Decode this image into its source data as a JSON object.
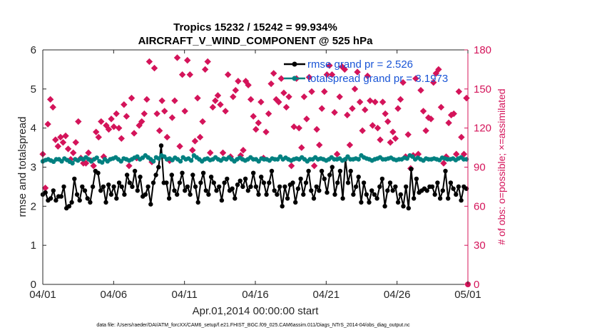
{
  "chart_data": {
    "type": "line",
    "title": "Tropics 15232 / 15242 = 99.934%",
    "subtitle": "AIRCRAFT_V_WIND_COMPONENT @ 525 hPa",
    "xlabel": "Apr.01,2014 00:00:00 start",
    "ylabel": "rmse and totalspread",
    "ylabel_right": "# of obs: o=possible; ×=assimilated",
    "footnote": "data file: /Users/raeder/DAI/ATM_forcXX/CAM6_setup/f.e21.FHIST_BGC.f09_025.CAM6assim.011/Diags_NTrS_2014-04/obs_diag_output.nc",
    "x_range": [
      0,
      30
    ],
    "ylim": [
      0,
      6
    ],
    "ylim_right": [
      0,
      180
    ],
    "x_ticks": [
      {
        "value": 0,
        "label": "04/01"
      },
      {
        "value": 5,
        "label": "04/06"
      },
      {
        "value": 10,
        "label": "04/11"
      },
      {
        "value": 15,
        "label": "04/16"
      },
      {
        "value": 20,
        "label": "04/21"
      },
      {
        "value": 25,
        "label": "04/26"
      },
      {
        "value": 30,
        "label": "05/01"
      }
    ],
    "y_ticks": [
      "0",
      "1",
      "2",
      "3",
      "4",
      "5",
      "6"
    ],
    "y_ticks_right": [
      "0",
      "30",
      "60",
      "90",
      "120",
      "150",
      "180"
    ],
    "legend_placement": "top-right",
    "grid": false,
    "colors": {
      "rmse": "#000000",
      "totalspread": "#008080",
      "obs": "#d4145a",
      "legend_text": "#1a55d6"
    },
    "series": [
      {
        "name": "rmse grand pr = 2.526",
        "axis": "left",
        "color": "#000000",
        "values": [
          2.3,
          2.35,
          2.15,
          2.2,
          2.4,
          2.15,
          2.25,
          2.25,
          2.5,
          1.95,
          2.0,
          2.1,
          2.7,
          2.3,
          2.15,
          2.5,
          2.4,
          2.2,
          2.1,
          2.5,
          2.9,
          2.85,
          2.4,
          2.5,
          2.1,
          2.55,
          2.3,
          2.5,
          2.2,
          2.6,
          2.5,
          2.3,
          2.8,
          2.6,
          2.5,
          2.9,
          2.4,
          2.75,
          2.25,
          2.3,
          2.5,
          2.05,
          2.6,
          2.8,
          3.0,
          3.55,
          2.6,
          2.6,
          2.2,
          2.8,
          2.4,
          2.3,
          2.6,
          2.85,
          2.4,
          2.5,
          2.3,
          2.8,
          2.5,
          2.1,
          2.6,
          2.85,
          2.4,
          2.3,
          2.75,
          2.6,
          2.4,
          2.5,
          2.15,
          2.6,
          2.7,
          2.4,
          2.45,
          2.2,
          2.55,
          2.65,
          2.5,
          2.7,
          2.4,
          2.5,
          2.85,
          2.5,
          2.3,
          2.75,
          2.6,
          2.3,
          2.6,
          2.9,
          2.4,
          2.3,
          2.5,
          2.0,
          2.5,
          2.2,
          2.55,
          2.6,
          2.1,
          2.45,
          2.7,
          2.3,
          2.6,
          2.9,
          2.4,
          2.2,
          2.5,
          2.4,
          2.9,
          2.7,
          2.35,
          2.8,
          3.0,
          2.3,
          2.6,
          2.9,
          2.2,
          3.2,
          2.6,
          2.9,
          2.3,
          2.5,
          2.75,
          2.1,
          2.6,
          2.3,
          2.1,
          2.4,
          2.3,
          2.2,
          2.5,
          2.7,
          2.0,
          2.4,
          2.6,
          2.4,
          2.5,
          2.1,
          2.3,
          2.0,
          2.5,
          1.95,
          2.95,
          2.2,
          2.7,
          2.35,
          2.4,
          2.45,
          2.4,
          2.5,
          2.5,
          2.3,
          2.6,
          2.2,
          2.4,
          2.9,
          2.2,
          2.6,
          2.45,
          2.3,
          2.5,
          2.15,
          2.5,
          2.45
        ]
      },
      {
        "name": "totalspread grand pr = 3.1973",
        "axis": "left",
        "color": "#008080",
        "values": [
          3.15,
          3.18,
          3.2,
          3.17,
          3.14,
          3.2,
          3.2,
          3.15,
          3.22,
          3.18,
          3.14,
          3.1,
          3.2,
          3.17,
          3.22,
          3.2,
          3.25,
          3.2,
          3.15,
          3.2,
          3.24,
          3.15,
          3.12,
          3.2,
          3.15,
          3.2,
          3.22,
          3.25,
          3.2,
          3.15,
          3.22,
          3.2,
          3.17,
          3.2,
          3.24,
          3.27,
          3.2,
          3.24,
          3.3,
          3.25,
          3.2,
          3.15,
          3.25,
          3.22,
          3.3,
          3.27,
          3.2,
          3.22,
          3.18,
          3.24,
          3.2,
          3.15,
          3.25,
          3.2,
          3.22,
          3.17,
          3.3,
          3.25,
          3.2,
          3.15,
          3.2,
          3.22,
          3.18,
          3.2,
          3.25,
          3.2,
          3.17,
          3.22,
          3.2,
          3.25,
          3.2,
          3.15,
          3.2,
          3.24,
          3.2,
          3.17,
          3.2,
          3.25,
          3.2,
          3.2,
          3.15,
          3.22,
          3.2,
          3.2,
          3.17,
          3.22,
          3.2,
          3.2,
          3.27,
          3.2,
          3.24,
          3.2,
          3.17,
          3.2,
          3.22,
          3.2,
          3.25,
          3.2,
          3.15,
          3.2,
          3.2,
          3.25,
          3.2,
          3.22,
          3.2,
          3.17,
          3.2,
          3.25,
          3.2,
          3.2,
          3.22,
          3.17,
          3.2,
          3.27,
          3.2,
          3.2,
          3.22,
          3.2,
          3.3,
          3.25,
          3.22,
          3.2,
          3.17,
          3.2,
          3.22,
          3.25,
          3.2,
          3.2,
          3.22,
          3.24,
          3.2,
          3.18,
          3.2,
          3.2,
          3.24,
          3.22,
          3.3,
          3.27,
          3.2,
          3.24,
          3.2,
          3.17,
          3.22,
          3.2,
          3.2,
          3.22,
          3.2,
          3.18,
          3.24,
          3.22,
          3.2,
          3.2,
          3.22,
          3.18,
          3.22,
          3.25,
          3.2,
          3.2
        ]
      },
      {
        "name": "# of obs possible",
        "axis": "right",
        "color": "#d4145a",
        "values": [
          100,
          74,
          123,
          142,
          136,
          111,
          106,
          113,
          109,
          114,
          104,
          96,
          101,
          109,
          125,
          97,
          93,
          93,
          101,
          95,
          91,
          117,
          113,
          125,
          98,
          122,
          119,
          127,
          121,
          131,
          120,
          112,
          138,
          129,
          91,
          143,
          116,
          97,
          122,
          125,
          131,
          142,
          171,
          94,
          166,
          131,
          118,
          141,
          133,
          113,
          95,
          128,
          141,
          174,
          106,
          161,
          133,
          172,
          161,
          103,
          110,
          143,
          113,
          125,
          165,
          171,
          101,
          136,
          141,
          145,
          138,
          101,
          133,
          161,
          98,
          144,
          149,
          156,
          99,
          103,
          156,
          153,
          142,
          129,
          119,
          124,
          140,
          97,
          117,
          131,
          154,
          162,
          142,
          140,
          158,
          147,
          136,
          144,
          91,
          121,
          158,
          120,
          105,
          144,
          127,
          159,
          148,
          91,
          119,
          107,
          135,
          148,
          161,
          168,
          161,
          132,
          100,
          144,
          167,
          165,
          130,
          107,
          135,
          150,
          163,
          140,
          118,
          134,
          160,
          141,
          122,
          140,
          120,
          111,
          140,
          131,
          125,
          109,
          117,
          112,
          135,
          142,
          155,
          98,
          115,
          89,
          99,
          158,
          100,
          149,
          133,
          118,
          128,
          127,
          155,
          162,
          165,
          136,
          93,
          98,
          124,
          130,
          131,
          100,
          148,
          113,
          100,
          143
        ]
      }
    ],
    "series_xmax": 29.9
  }
}
